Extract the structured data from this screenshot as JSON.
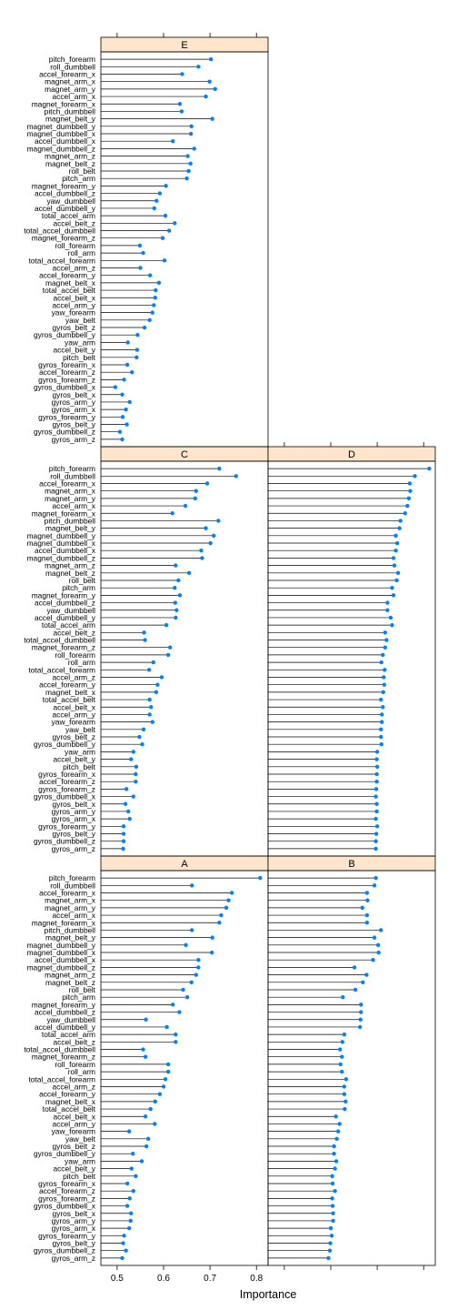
{
  "chart_data": {
    "type": "dotplot",
    "xlabel": "Importance",
    "xticks": [
      0.5,
      0.6,
      0.7,
      0.8
    ],
    "xlim": [
      0.465,
      0.825
    ],
    "variables": [
      "pitch_forearm",
      "roll_dumbbell",
      "accel_forearm_x",
      "magnet_arm_x",
      "magnet_arm_y",
      "accel_arm_x",
      "magnet_forearm_x",
      "pitch_dumbbell",
      "magnet_belt_y",
      "magnet_dumbbell_y",
      "magnet_dumbbell_x",
      "accel_dumbbell_x",
      "magnet_dumbbell_z",
      "magnet_arm_z",
      "magnet_belt_z",
      "roll_belt",
      "pitch_arm",
      "magnet_forearm_y",
      "accel_dumbbell_z",
      "yaw_dumbbell",
      "accel_dumbbell_y",
      "total_accel_arm",
      "accel_belt_z",
      "total_accel_dumbbell",
      "magnet_forearm_z",
      "roll_forearm",
      "roll_arm",
      "total_accel_forearm",
      "accel_arm_z",
      "accel_forearm_y",
      "magnet_belt_x",
      "total_accel_belt",
      "accel_belt_x",
      "accel_arm_y",
      "yaw_forearm",
      "yaw_belt",
      "gyros_belt_z",
      "gyros_dumbbell_y",
      "yaw_arm",
      "accel_belt_y",
      "pitch_belt",
      "gyros_forearm_x",
      "accel_forearm_z",
      "gyros_forearm_z",
      "gyros_dumbbell_x",
      "gyros_belt_x",
      "gyros_arm_y",
      "gyros_arm_x",
      "gyros_forearm_y",
      "gyros_belt_y",
      "gyros_dumbbell_z",
      "gyros_arm_z"
    ],
    "panels": [
      {
        "name": "A",
        "values": [
          0.808,
          0.661,
          0.747,
          0.74,
          0.735,
          0.724,
          0.72,
          0.661,
          0.705,
          0.648,
          0.704,
          0.675,
          0.675,
          0.67,
          0.66,
          0.642,
          0.651,
          0.62,
          0.634,
          0.562,
          0.607,
          0.626,
          0.626,
          0.556,
          0.561,
          0.61,
          0.61,
          0.604,
          0.6,
          0.592,
          0.582,
          0.572,
          0.561,
          0.581,
          0.526,
          0.567,
          0.563,
          0.534,
          0.553,
          0.531,
          0.54,
          0.522,
          0.535,
          0.527,
          0.522,
          0.53,
          0.529,
          0.526,
          0.515,
          0.513,
          0.519,
          0.511
        ]
      },
      {
        "name": "B",
        "values": [
          0.697,
          0.694,
          0.678,
          0.679,
          0.668,
          0.678,
          0.678,
          0.708,
          0.694,
          0.702,
          0.703,
          0.691,
          0.651,
          0.677,
          0.669,
          0.653,
          0.626,
          0.665,
          0.665,
          0.664,
          0.663,
          0.629,
          0.625,
          0.62,
          0.624,
          0.621,
          0.624,
          0.633,
          0.629,
          0.629,
          0.632,
          0.63,
          0.611,
          0.619,
          0.616,
          0.613,
          0.607,
          0.607,
          0.612,
          0.609,
          0.603,
          0.604,
          0.609,
          0.603,
          0.604,
          0.605,
          0.605,
          0.6,
          0.602,
          0.599,
          0.598,
          0.595
        ]
      },
      {
        "name": "C",
        "values": [
          0.72,
          0.756,
          0.694,
          0.67,
          0.668,
          0.647,
          0.619,
          0.718,
          0.691,
          0.708,
          0.701,
          0.681,
          0.683,
          0.626,
          0.655,
          0.632,
          0.624,
          0.635,
          0.625,
          0.628,
          0.626,
          0.606,
          0.558,
          0.56,
          0.614,
          0.61,
          0.578,
          0.569,
          0.596,
          0.587,
          0.584,
          0.57,
          0.573,
          0.57,
          0.576,
          0.557,
          0.548,
          0.554,
          0.535,
          0.53,
          0.541,
          0.54,
          0.54,
          0.52,
          0.535,
          0.518,
          0.524,
          0.527,
          0.514,
          0.514,
          0.514,
          0.513
        ]
      },
      {
        "name": "D",
        "values": [
          0.812,
          0.781,
          0.77,
          0.771,
          0.768,
          0.765,
          0.76,
          0.75,
          0.748,
          0.74,
          0.743,
          0.74,
          0.735,
          0.737,
          0.745,
          0.742,
          0.732,
          0.735,
          0.722,
          0.722,
          0.729,
          0.732,
          0.717,
          0.72,
          0.717,
          0.712,
          0.709,
          0.716,
          0.714,
          0.715,
          0.713,
          0.708,
          0.712,
          0.71,
          0.71,
          0.708,
          0.708,
          0.709,
          0.7,
          0.699,
          0.7,
          0.699,
          0.699,
          0.698,
          0.697,
          0.699,
          0.699,
          0.697,
          0.7,
          0.698,
          0.697,
          0.697
        ]
      },
      {
        "name": "E",
        "values": [
          0.702,
          0.675,
          0.64,
          0.699,
          0.711,
          0.691,
          0.635,
          0.639,
          0.705,
          0.66,
          0.659,
          0.62,
          0.666,
          0.652,
          0.658,
          0.654,
          0.65,
          0.605,
          0.592,
          0.585,
          0.58,
          0.604,
          0.624,
          0.612,
          0.598,
          0.549,
          0.556,
          0.602,
          0.55,
          0.571,
          0.59,
          0.583,
          0.582,
          0.579,
          0.576,
          0.57,
          0.559,
          0.544,
          0.523,
          0.543,
          0.542,
          0.522,
          0.532,
          0.515,
          0.496,
          0.511,
          0.527,
          0.519,
          0.512,
          0.521,
          0.506,
          0.511
        ]
      }
    ]
  },
  "colors": {
    "dot": "#0080ff",
    "strip_fill": "#ffe5cc",
    "line": "#000000",
    "border": "#000000"
  }
}
